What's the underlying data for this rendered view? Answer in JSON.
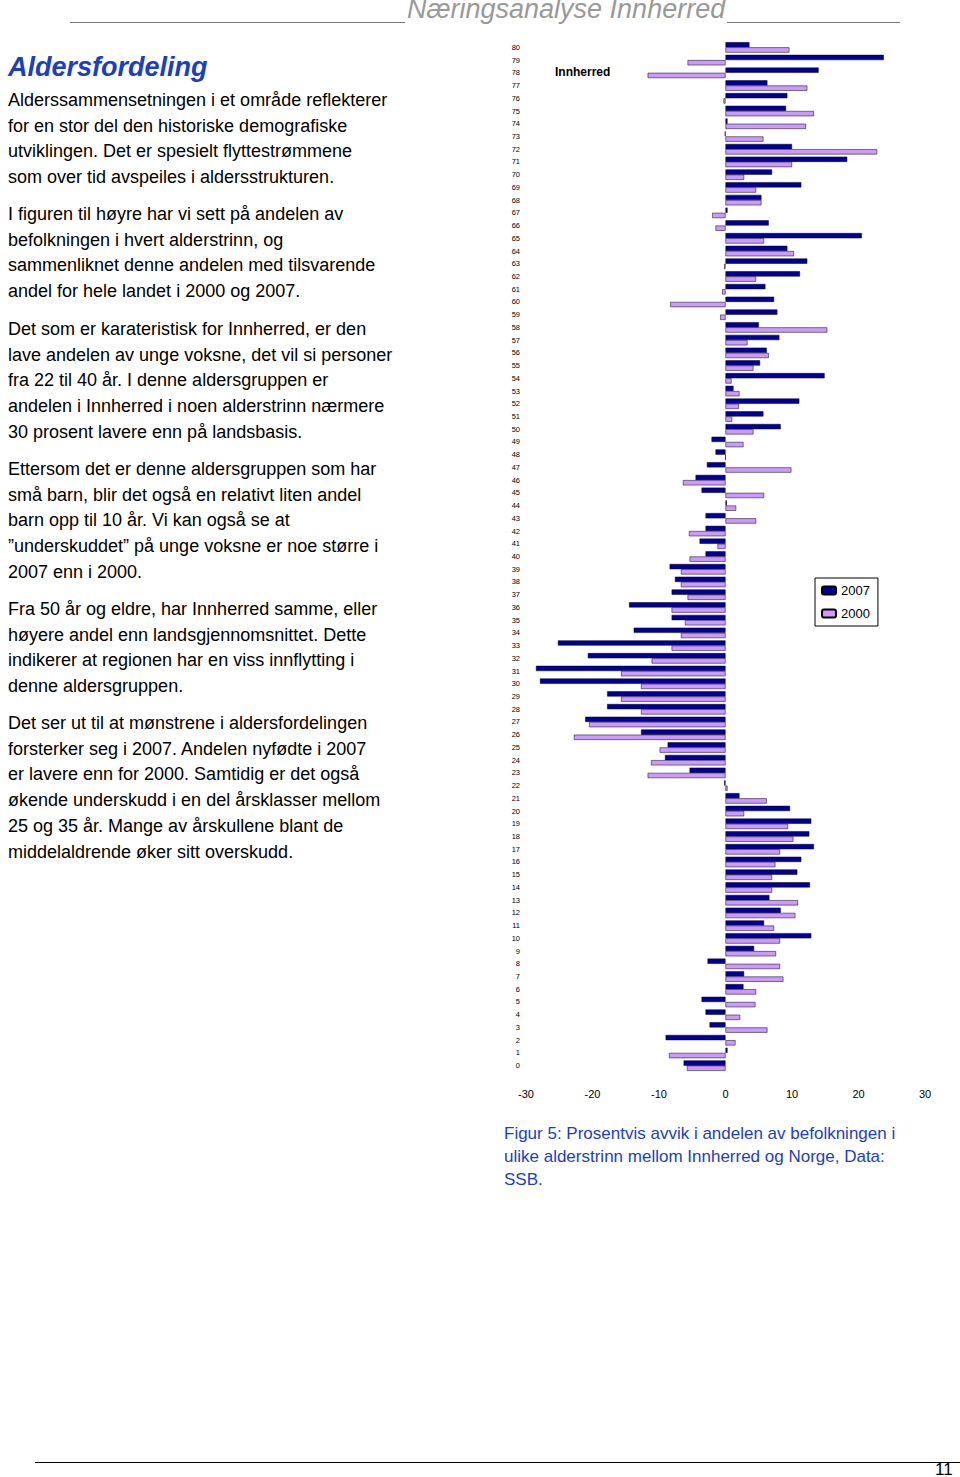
{
  "header": "Næringsanalyse Innherred",
  "heading": "Aldersfordeling",
  "paragraphs": [
    [
      "Alderssammensetningen i et område reflekterer",
      "for en stor del den historiske demografiske",
      "utviklingen. Det er spesielt flyttestrømmene",
      "som over tid avspeiles i aldersstrukturen."
    ],
    [
      "I figuren til høyre har vi sett på andelen av",
      "befolkningen i hvert alderstrinn, og",
      "sammenliknet denne andelen med tilsvarende",
      "andel for hele landet i 2000 og 2007."
    ],
    [
      "Det som er karateristisk for Innherred, er den",
      "lave andelen av unge voksne, det vil si personer",
      "fra 22 til 40 år. I denne aldersgruppen er",
      "andelen i Innherred i noen alderstrinn nærmere",
      "30 prosent lavere enn på landsbasis."
    ],
    [
      "Ettersom det er denne aldersgruppen som har",
      "små barn, blir det også en relativt liten andel",
      "barn opp til 10 år. Vi kan også se at",
      "”underskuddet” på unge voksne er noe større i",
      "2007 enn i 2000."
    ],
    [
      "Fra 50 år og eldre, har Innherred samme, eller",
      "høyere andel enn landsgjennomsnittet. Dette",
      "indikerer at regionen har en viss innflytting i",
      "denne aldersgruppen."
    ],
    [
      "Det ser ut til at mønstrene i aldersfordelingen",
      "forsterker seg i 2007. Andelen nyfødte i 2007",
      "er lavere enn for 2000. Samtidig er det også",
      "økende underskudd i en del årsklasser mellom",
      "25 og 35 år. Mange av årskullene blant de",
      "middelaldrende øker sitt overskudd."
    ]
  ],
  "caption": [
    "Figur 5: Prosentvis avvik i andelen av befolkningen i",
    "ulike alderstrinn mellom Innherred og Norge, Data:",
    "SSB."
  ],
  "page_number": "11",
  "chart_data": {
    "type": "bar",
    "orientation": "horizontal",
    "title": "Innherred",
    "categories": [
      0,
      1,
      2,
      3,
      4,
      5,
      6,
      7,
      8,
      9,
      10,
      11,
      12,
      13,
      14,
      15,
      16,
      17,
      18,
      19,
      20,
      21,
      22,
      23,
      24,
      25,
      26,
      27,
      28,
      29,
      30,
      31,
      32,
      33,
      34,
      35,
      36,
      37,
      38,
      39,
      40,
      41,
      42,
      43,
      44,
      45,
      46,
      47,
      48,
      49,
      50,
      51,
      52,
      53,
      54,
      55,
      56,
      57,
      58,
      59,
      60,
      61,
      62,
      63,
      64,
      65,
      66,
      67,
      68,
      69,
      70,
      71,
      72,
      73,
      74,
      75,
      76,
      77,
      78,
      79,
      80
    ],
    "series": [
      {
        "name": "2007",
        "color": "#000099",
        "values": [
          -6.3,
          0.3,
          -9,
          -2.4,
          -3,
          -3.6,
          2.7,
          2.8,
          -2.7,
          4.3,
          12.9,
          5.8,
          8.3,
          6.6,
          12.7,
          10.8,
          11.4,
          13.3,
          12.6,
          12.9,
          9.7,
          2.1,
          -0.2,
          -5.4,
          -9.1,
          -8.7,
          -12.7,
          -21.1,
          -17.8,
          -17.8,
          -27.9,
          -28.5,
          -20.7,
          -25.2,
          -13.8,
          -8.1,
          -14.5,
          -8.1,
          -7.6,
          -8.4,
          -3,
          -3.9,
          -3,
          -3,
          0.2,
          -3.6,
          -4.5,
          -2.8,
          -1.5,
          -2.1,
          8.3,
          5.7,
          11.1,
          1.2,
          14.9,
          5.2,
          6.2,
          8.1,
          5,
          7.8,
          7.3,
          6,
          11.2,
          12.3,
          9.3,
          20.5,
          6.5,
          0.3,
          5.4,
          11.4,
          7,
          18.3,
          10,
          -0.1,
          0.3,
          9.1,
          9.3,
          6.3,
          14,
          23.8,
          3.6
        ]
      },
      {
        "name": "2000",
        "color": "#cc99ff",
        "values": [
          -5.8,
          -8.5,
          1.5,
          6.3,
          2.2,
          4.5,
          4.6,
          8.7,
          8.2,
          7.6,
          8.2,
          7.3,
          10.5,
          10.9,
          7,
          7,
          7.5,
          8.2,
          10.2,
          9.4,
          2.8,
          6.2,
          0.3,
          -11.7,
          -11.2,
          -9.9,
          -22.8,
          -20.5,
          -12.7,
          -15.7,
          -12.7,
          -15.7,
          -11.1,
          -8.1,
          -6.7,
          -6.1,
          -8.1,
          -5.7,
          -6.7,
          -6.7,
          -5.4,
          -1.2,
          -5.5,
          4.6,
          1.6,
          5.8,
          -6.4,
          9.9,
          0,
          2.7,
          4.2,
          1,
          2,
          2.1,
          0.9,
          4.2,
          6.5,
          3.3,
          15.3,
          -0.8,
          -8.3,
          -0.5,
          4.6,
          -0.2,
          10.3,
          5.8,
          -1.5,
          -2,
          5.4,
          4.6,
          2.8,
          10,
          22.8,
          5.7,
          12.1,
          13.3,
          -0.3,
          12.3,
          -11.7,
          -5.7,
          9.6
        ]
      }
    ],
    "xlim": [
      -30,
      30
    ],
    "xticks": [
      -30,
      -20,
      -10,
      0,
      10,
      20,
      30
    ],
    "grid": false,
    "legend": "right"
  }
}
